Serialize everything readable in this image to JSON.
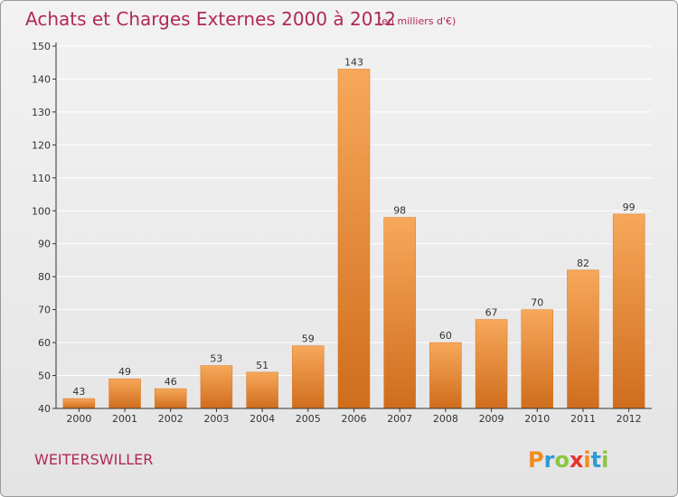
{
  "title": "Achats et Charges Externes 2000 à 2012",
  "subtitle": "(en milliers d'€)",
  "commune": "WEITERSWILLER",
  "logo": {
    "text": "Proxiti",
    "letters": [
      {
        "ch": "P",
        "color": "#f28c1e"
      },
      {
        "ch": "r",
        "color": "#2e9bd6"
      },
      {
        "ch": "o",
        "color": "#8cc63f"
      },
      {
        "ch": "x",
        "color": "#e8342a"
      },
      {
        "ch": "i",
        "color": "#f28c1e"
      },
      {
        "ch": "t",
        "color": "#2e9bd6"
      },
      {
        "ch": "i",
        "color": "#8cc63f"
      }
    ]
  },
  "colors": {
    "bar_top": "#f7a85a",
    "bar_bottom": "#cf6d1d",
    "bar_stroke": "#d9741f",
    "axis": "#333333",
    "grid": "#ffffff",
    "title": "#b0285a"
  },
  "chart_data": {
    "type": "bar",
    "title": "Achats et Charges Externes 2000 à 2012",
    "subtitle": "(en milliers d'€)",
    "xlabel": "",
    "ylabel": "",
    "categories": [
      "2000",
      "2001",
      "2002",
      "2003",
      "2004",
      "2005",
      "2006",
      "2007",
      "2008",
      "2009",
      "2010",
      "2011",
      "2012"
    ],
    "values": [
      43,
      49,
      46,
      53,
      51,
      59,
      143,
      98,
      60,
      67,
      70,
      82,
      99
    ],
    "ylim": [
      40,
      150
    ],
    "yticks": [
      40,
      50,
      60,
      70,
      80,
      90,
      100,
      110,
      120,
      130,
      140,
      150
    ],
    "grid": true,
    "legend": "none"
  }
}
